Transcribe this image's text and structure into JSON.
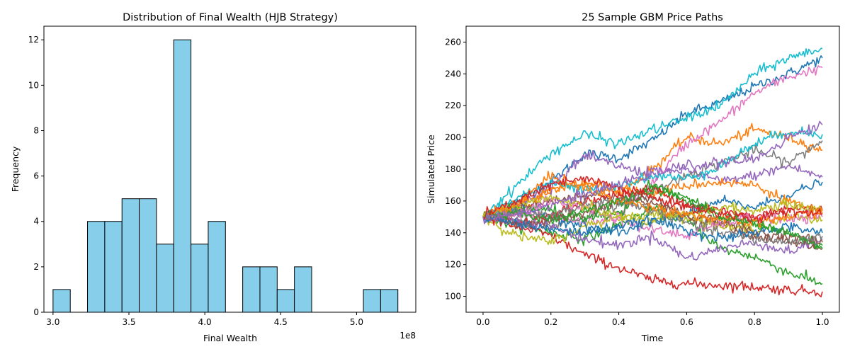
{
  "chart_data": [
    {
      "type": "bar",
      "title": "Distribution of Final Wealth (HJB Strategy)",
      "xlabel": "Final Wealth",
      "ylabel": "Frequency",
      "x_offset_text": "1e8",
      "xlim": [
        2.94,
        5.39
      ],
      "ylim": [
        0,
        12.6
      ],
      "xticks": [
        3.0,
        3.5,
        4.0,
        4.5,
        5.0
      ],
      "xtick_labels": [
        "3.0",
        "3.5",
        "4.0",
        "4.5",
        "5.0"
      ],
      "yticks": [
        0,
        2,
        4,
        6,
        8,
        10,
        12
      ],
      "ytick_labels": [
        "0",
        "2",
        "4",
        "6",
        "8",
        "10",
        "12"
      ],
      "bin_start": 3.0,
      "bin_width": 0.1136,
      "values": [
        1,
        0,
        4,
        4,
        5,
        5,
        3,
        12,
        3,
        4,
        0,
        2,
        2,
        1,
        2,
        0,
        0,
        0,
        1,
        1
      ],
      "bar_color": "#87CEEB",
      "edge_color": "#000000"
    },
    {
      "type": "line",
      "title": "25 Sample GBM Price Paths",
      "xlabel": "Time",
      "ylabel": "Simulated Price",
      "xlim": [
        -0.05,
        1.05
      ],
      "ylim": [
        90,
        270
      ],
      "xticks": [
        0.0,
        0.2,
        0.4,
        0.6,
        0.8,
        1.0
      ],
      "xtick_labels": [
        "0.0",
        "0.2",
        "0.4",
        "0.6",
        "0.8",
        "1.0"
      ],
      "yticks": [
        100,
        120,
        140,
        160,
        180,
        200,
        220,
        240,
        260
      ],
      "ytick_labels": [
        "100",
        "120",
        "140",
        "160",
        "180",
        "200",
        "220",
        "240",
        "260"
      ],
      "x": [
        0,
        0.1,
        0.2,
        0.3,
        0.4,
        0.5,
        0.6,
        0.7,
        0.8,
        0.9,
        1.0
      ],
      "series": [
        {
          "color": "#1f77b4",
          "values": [
            150,
            160,
            172,
            190,
            187,
            198,
            215,
            222,
            232,
            240,
            250
          ]
        },
        {
          "color": "#ff7f0e",
          "values": [
            150,
            152,
            168,
            172,
            165,
            180,
            200,
            196,
            205,
            200,
            192
          ]
        },
        {
          "color": "#2ca02c",
          "values": [
            150,
            145,
            140,
            136,
            145,
            155,
            148,
            130,
            125,
            115,
            108
          ]
        },
        {
          "color": "#d62728",
          "values": [
            150,
            144,
            138,
            126,
            118,
            110,
            108,
            107,
            106,
            104,
            103
          ]
        },
        {
          "color": "#9467bd",
          "values": [
            150,
            156,
            170,
            188,
            182,
            176,
            180,
            172,
            176,
            182,
            175
          ]
        },
        {
          "color": "#8c564b",
          "values": [
            150,
            156,
            160,
            164,
            162,
            158,
            150,
            146,
            138,
            134,
            130
          ]
        },
        {
          "color": "#e377c2",
          "values": [
            150,
            152,
            150,
            146,
            150,
            172,
            196,
            210,
            228,
            238,
            244
          ]
        },
        {
          "color": "#7f7f7f",
          "values": [
            150,
            148,
            144,
            150,
            158,
            166,
            176,
            184,
            192,
            184,
            198
          ]
        },
        {
          "color": "#bcbd22",
          "values": [
            150,
            138,
            134,
            144,
            150,
            152,
            150,
            144,
            142,
            150,
            148
          ]
        },
        {
          "color": "#17becf",
          "values": [
            150,
            170,
            190,
            202,
            196,
            205,
            212,
            220,
            240,
            250,
            256
          ]
        },
        {
          "color": "#1f77b4",
          "values": [
            150,
            154,
            150,
            144,
            140,
            146,
            152,
            160,
            156,
            164,
            172
          ]
        },
        {
          "color": "#ff7f0e",
          "values": [
            150,
            158,
            166,
            172,
            168,
            164,
            170,
            172,
            170,
            160,
            152
          ]
        },
        {
          "color": "#2ca02c",
          "values": [
            150,
            156,
            154,
            148,
            152,
            168,
            160,
            150,
            146,
            140,
            132
          ]
        },
        {
          "color": "#d62728",
          "values": [
            150,
            146,
            150,
            160,
            164,
            168,
            158,
            154,
            150,
            156,
            154
          ]
        },
        {
          "color": "#9467bd",
          "values": [
            150,
            148,
            144,
            136,
            132,
            138,
            124,
            130,
            134,
            128,
            136
          ]
        },
        {
          "color": "#8c564b",
          "values": [
            150,
            146,
            148,
            152,
            160,
            162,
            150,
            148,
            140,
            138,
            134
          ]
        },
        {
          "color": "#e377c2",
          "values": [
            150,
            152,
            160,
            156,
            148,
            142,
            138,
            146,
            150,
            148,
            150
          ]
        },
        {
          "color": "#7f7f7f",
          "values": [
            150,
            154,
            150,
            158,
            160,
            154,
            146,
            140,
            136,
            134,
            138
          ]
        },
        {
          "color": "#bcbd22",
          "values": [
            150,
            158,
            162,
            156,
            150,
            146,
            152,
            156,
            154,
            158,
            154
          ]
        },
        {
          "color": "#17becf",
          "values": [
            150,
            162,
            172,
            166,
            170,
            176,
            174,
            182,
            196,
            204,
            202
          ]
        },
        {
          "color": "#1f77b4",
          "values": [
            150,
            146,
            142,
            140,
            144,
            148,
            142,
            136,
            140,
            144,
            140
          ]
        },
        {
          "color": "#ff7f0e",
          "values": [
            150,
            158,
            176,
            168,
            160,
            156,
            152,
            148,
            146,
            150,
            154
          ]
        },
        {
          "color": "#2ca02c",
          "values": [
            150,
            152,
            148,
            154,
            160,
            170,
            162,
            150,
            146,
            140,
            130
          ]
        },
        {
          "color": "#d62728",
          "values": [
            150,
            160,
            170,
            174,
            168,
            162,
            156,
            152,
            148,
            154,
            152
          ]
        },
        {
          "color": "#9467bd",
          "values": [
            150,
            152,
            158,
            164,
            170,
            178,
            182,
            184,
            186,
            200,
            208
          ]
        }
      ]
    }
  ]
}
